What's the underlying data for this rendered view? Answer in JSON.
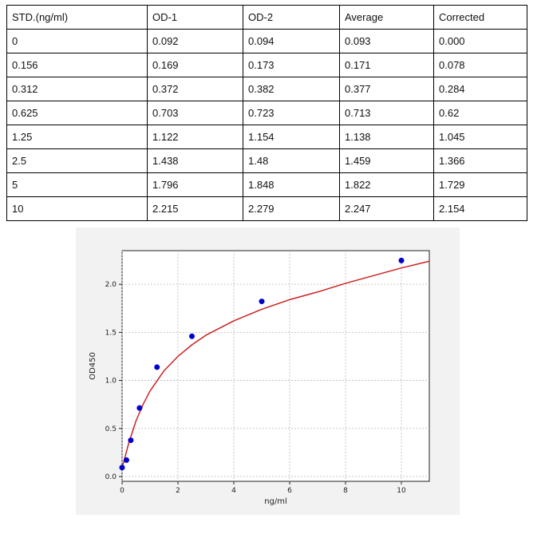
{
  "table": {
    "headers": [
      "STD.(ng/ml)",
      "OD-1",
      "OD-2",
      "Average",
      "Corrected"
    ],
    "rows": [
      [
        "0",
        "0.092",
        "0.094",
        "0.093",
        "0.000"
      ],
      [
        "0.156",
        "0.169",
        "0.173",
        "0.171",
        "0.078"
      ],
      [
        "0.312",
        "0.372",
        "0.382",
        "0.377",
        "0.284"
      ],
      [
        "0.625",
        "0.703",
        "0.723",
        "0.713",
        "0.62"
      ],
      [
        "1.25",
        "1.122",
        "1.154",
        "1.138",
        "1.045"
      ],
      [
        "2.5",
        "1.438",
        "1.48",
        "1.459",
        "1.366"
      ],
      [
        "5",
        "1.796",
        "1.848",
        "1.822",
        "1.729"
      ],
      [
        "10",
        "2.215",
        "2.279",
        "2.247",
        "2.154"
      ]
    ]
  },
  "chart_data": {
    "type": "scatter",
    "xlabel": "ng/ml",
    "ylabel": "OD450",
    "xlim": [
      0,
      11
    ],
    "ylim": [
      -0.05,
      2.35
    ],
    "xticks": [
      0,
      2,
      4,
      6,
      8,
      10
    ],
    "yticks": [
      0.0,
      0.5,
      1.0,
      1.5,
      2.0
    ],
    "xtick_labels": [
      "0",
      "2",
      "4",
      "6",
      "8",
      "10"
    ],
    "ytick_labels": [
      "0.0",
      "0.5",
      "1.0",
      "1.5",
      "2.0"
    ],
    "grid": true,
    "series": [
      {
        "kind": "points",
        "color": "#0000cc",
        "x": [
          0,
          0.156,
          0.312,
          0.625,
          1.25,
          2.5,
          5,
          10
        ],
        "y": [
          0.093,
          0.171,
          0.377,
          0.713,
          1.138,
          1.459,
          1.822,
          2.247
        ]
      },
      {
        "kind": "fit-curve",
        "color": "#cc2222",
        "x": [
          0,
          0.25,
          0.5,
          0.75,
          1,
          1.5,
          2,
          2.5,
          3,
          4,
          5,
          6,
          7,
          8,
          9,
          10,
          11
        ],
        "y": [
          0.09,
          0.36,
          0.58,
          0.75,
          0.89,
          1.1,
          1.25,
          1.37,
          1.47,
          1.62,
          1.74,
          1.84,
          1.92,
          2.01,
          2.09,
          2.17,
          2.24
        ]
      }
    ]
  },
  "colors": {
    "panel_background": "#f2f2f2",
    "grid": "#b8b8b8",
    "points": "#0000cc",
    "fit_curve": "#cc2222"
  }
}
